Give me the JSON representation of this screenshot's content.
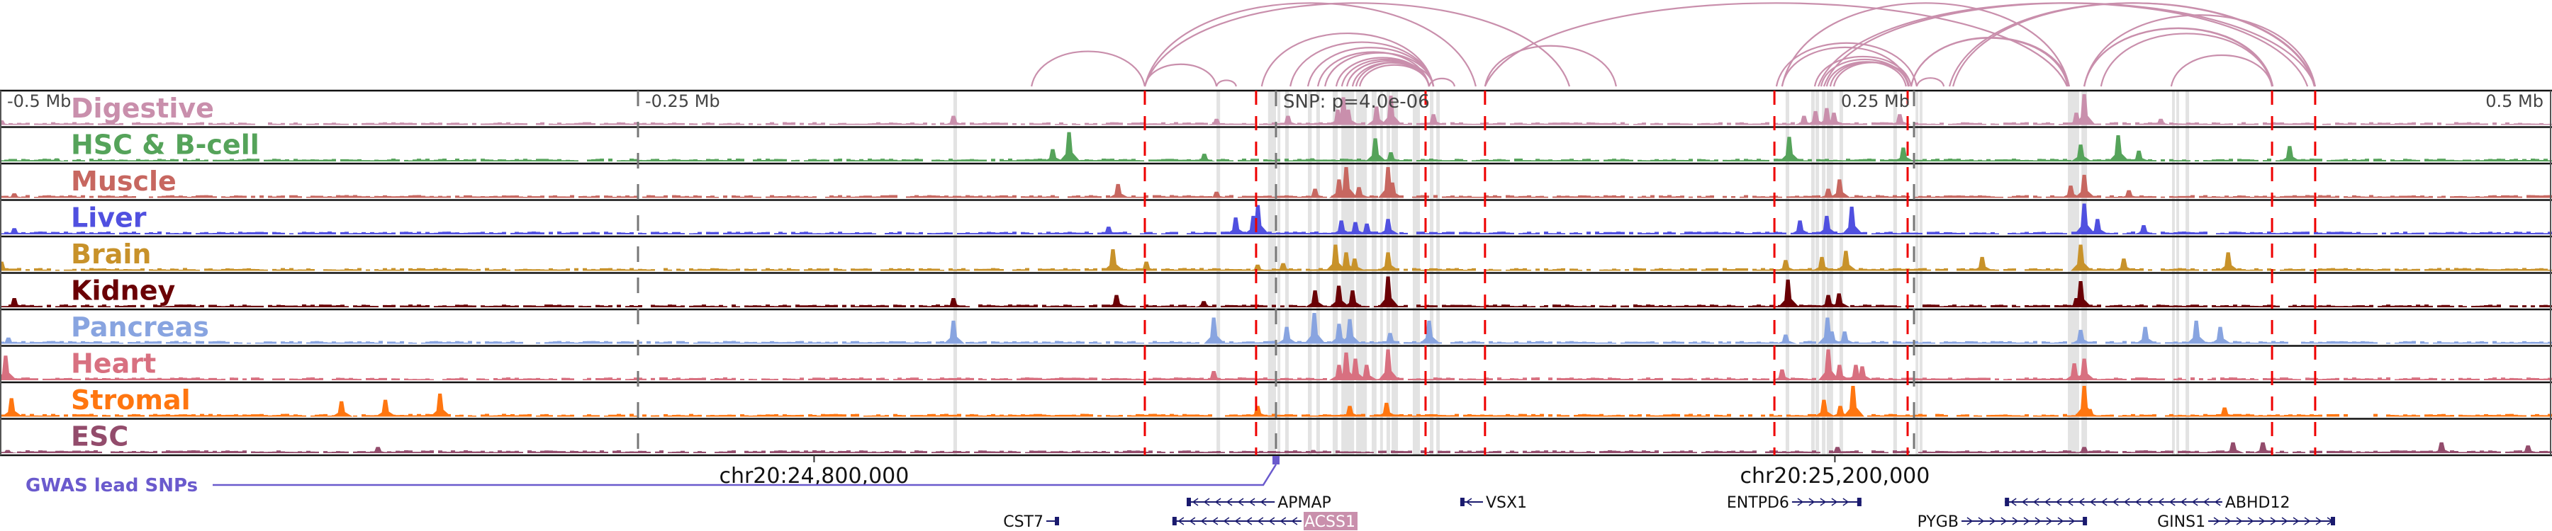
{
  "view": {
    "range_mb": [
      -0.5,
      0.5
    ],
    "axis_ticks": [
      {
        "pos_mb": -0.5,
        "label": "-0.5 Mb"
      },
      {
        "pos_mb": -0.25,
        "label": "-0.25 Mb"
      },
      {
        "pos_mb": 0.25,
        "label": "0.25 Mb"
      },
      {
        "pos_mb": 0.5,
        "label": "0.5 Mb"
      }
    ],
    "snp": {
      "pos_mb": 0.0,
      "label": "SNP: p=4.0e-06"
    }
  },
  "colors": {
    "red_line": "#ee0000",
    "highlight": "#e3e3e3",
    "arc": "#c98fac",
    "gwas": "#6a5acd",
    "gene": "#1a1a6e",
    "gene_highlight_bg": "#c98fac"
  },
  "tracks": [
    {
      "name": "Digestive",
      "color": "#c98fac"
    },
    {
      "name": "HSC & B-cell",
      "color": "#55a35a"
    },
    {
      "name": "Muscle",
      "color": "#c76760"
    },
    {
      "name": "Liver",
      "color": "#5050e0"
    },
    {
      "name": "Brain",
      "color": "#c8922a"
    },
    {
      "name": "Kidney",
      "color": "#6a0005"
    },
    {
      "name": "Pancreas",
      "color": "#88a4e0"
    },
    {
      "name": "Heart",
      "color": "#d87080"
    },
    {
      "name": "Stromal",
      "color": "#ff7610"
    },
    {
      "name": "ESC",
      "color": "#934c6c"
    }
  ],
  "red_lines_mb": [
    -0.0514,
    -0.0078,
    0.0586,
    0.0819,
    0.1953,
    0.2475,
    0.3903,
    0.4072
  ],
  "highlight_bands_mb": [
    [
      -0.1264,
      -0.125
    ],
    [
      -0.0233,
      -0.0219
    ],
    [
      -0.0031,
      0.0
    ],
    [
      0.0006,
      0.0017
    ],
    [
      0.0036,
      0.005
    ],
    [
      0.0125,
      0.014
    ],
    [
      0.0158,
      0.0172
    ],
    [
      0.0222,
      0.0242
    ],
    [
      0.0256,
      0.0306
    ],
    [
      0.0314,
      0.0356
    ],
    [
      0.0375,
      0.0394
    ],
    [
      0.0408,
      0.0419
    ],
    [
      0.0433,
      0.0447
    ],
    [
      0.0453,
      0.0478
    ],
    [
      0.0536,
      0.0564
    ],
    [
      0.0603,
      0.0617
    ],
    [
      0.0628,
      0.0642
    ],
    [
      0.1997,
      0.2011
    ],
    [
      0.2097,
      0.2111
    ],
    [
      0.2114,
      0.2128
    ],
    [
      0.2139,
      0.2153
    ],
    [
      0.2158,
      0.2183
    ],
    [
      0.2208,
      0.2222
    ],
    [
      0.2419,
      0.2433
    ],
    [
      0.2506,
      0.2517
    ],
    [
      0.2522,
      0.2533
    ],
    [
      0.3103,
      0.3147
    ],
    [
      0.3156,
      0.317
    ],
    [
      0.3164,
      0.3178
    ],
    [
      0.3511,
      0.3522
    ],
    [
      0.3528,
      0.3539
    ],
    [
      0.3564,
      0.3578
    ]
  ],
  "track_peaks": [
    [
      [
        -0.4994,
        0.15
      ],
      [
        -0.1264,
        0.3
      ],
      [
        -0.0233,
        0.2
      ],
      [
        0.0047,
        0.3
      ],
      [
        0.0242,
        0.5
      ],
      [
        0.0264,
        0.9
      ],
      [
        0.0283,
        0.5
      ],
      [
        0.0394,
        0.6
      ],
      [
        0.045,
        0.95
      ],
      [
        0.0617,
        0.35
      ],
      [
        0.2069,
        0.3
      ],
      [
        0.2114,
        0.45
      ],
      [
        0.2158,
        0.55
      ],
      [
        0.2186,
        0.4
      ],
      [
        0.2444,
        0.35
      ],
      [
        0.3136,
        0.4
      ],
      [
        0.3167,
        1.0
      ],
      [
        0.3467,
        0.2
      ]
    ],
    [
      [
        -0.4778,
        0.1
      ],
      [
        -0.0811,
        0.95
      ],
      [
        -0.0875,
        0.4
      ],
      [
        -0.0281,
        0.25
      ],
      [
        0.0389,
        0.75
      ],
      [
        0.045,
        0.3
      ],
      [
        0.0142,
        0.1
      ],
      [
        0.2458,
        0.45
      ],
      [
        0.3153,
        0.55
      ],
      [
        0.33,
        0.85
      ],
      [
        0.3381,
        0.35
      ],
      [
        0.3972,
        0.5
      ],
      [
        0.2011,
        0.8
      ]
    ],
    [
      [
        -0.4944,
        0.15
      ],
      [
        -0.0619,
        0.45
      ],
      [
        -0.0233,
        0.2
      ],
      [
        0.0153,
        0.3
      ],
      [
        0.0247,
        0.6
      ],
      [
        0.0275,
        1.0
      ],
      [
        0.0325,
        0.35
      ],
      [
        0.0439,
        1.0
      ],
      [
        0.0456,
        0.5
      ],
      [
        0.2164,
        0.3
      ],
      [
        0.2208,
        0.6
      ],
      [
        0.3114,
        0.4
      ],
      [
        0.3167,
        0.75
      ],
      [
        0.3342,
        0.25
      ]
    ],
    [
      [
        -0.4944,
        0.2
      ],
      [
        -0.0656,
        0.25
      ],
      [
        -0.0158,
        0.55
      ],
      [
        -0.0089,
        0.6
      ],
      [
        -0.0071,
        0.95
      ],
      [
        0.0256,
        0.45
      ],
      [
        0.0311,
        0.4
      ],
      [
        0.0356,
        0.35
      ],
      [
        0.0439,
        0.5
      ],
      [
        0.2053,
        0.45
      ],
      [
        0.2158,
        0.6
      ],
      [
        0.2256,
        0.9
      ],
      [
        0.3167,
        1.0
      ],
      [
        0.3219,
        0.5
      ],
      [
        0.34,
        0.3
      ]
    ],
    [
      [
        -0.4994,
        0.3
      ],
      [
        -0.0639,
        0.7
      ],
      [
        -0.0508,
        0.3
      ],
      [
        -0.0072,
        0.2
      ],
      [
        0.0028,
        0.25
      ],
      [
        0.0233,
        0.85
      ],
      [
        0.0275,
        0.6
      ],
      [
        0.0308,
        0.4
      ],
      [
        0.0439,
        0.6
      ],
      [
        0.1997,
        0.35
      ],
      [
        0.2139,
        0.45
      ],
      [
        0.2233,
        0.65
      ],
      [
        0.2767,
        0.45
      ],
      [
        0.3153,
        0.85
      ],
      [
        0.3322,
        0.4
      ],
      [
        0.3731,
        0.6
      ]
    ],
    [
      [
        -0.4944,
        0.3
      ],
      [
        -0.1264,
        0.3
      ],
      [
        -0.0625,
        0.4
      ],
      [
        -0.0283,
        0.2
      ],
      [
        0.0153,
        0.55
      ],
      [
        0.0246,
        0.7
      ],
      [
        0.03,
        0.55
      ],
      [
        0.0439,
        1.0
      ],
      [
        0.2006,
        0.9
      ],
      [
        0.2164,
        0.4
      ],
      [
        0.2206,
        0.45
      ],
      [
        0.3153,
        0.85
      ],
      [
        0.3136,
        0.3
      ]
    ],
    [
      [
        -0.4967,
        0.2
      ],
      [
        -0.1264,
        0.75
      ],
      [
        -0.0244,
        0.85
      ],
      [
        0.0042,
        0.55
      ],
      [
        0.015,
        1.0
      ],
      [
        0.0247,
        0.65
      ],
      [
        0.0289,
        0.8
      ],
      [
        0.0447,
        0.35
      ],
      [
        0.06,
        0.75
      ],
      [
        0.1997,
        0.3
      ],
      [
        0.2161,
        0.85
      ],
      [
        0.2178,
        0.4
      ],
      [
        0.2228,
        0.4
      ],
      [
        0.3153,
        0.45
      ],
      [
        0.3406,
        0.55
      ],
      [
        0.3606,
        0.75
      ],
      [
        0.37,
        0.55
      ]
    ],
    [
      [
        -0.4978,
        0.8
      ],
      [
        -0.0244,
        0.3
      ],
      [
        0.0247,
        0.5
      ],
      [
        0.0275,
        0.9
      ],
      [
        0.0311,
        0.7
      ],
      [
        0.0439,
        1.0
      ],
      [
        0.0355,
        0.5
      ],
      [
        0.1983,
        0.35
      ],
      [
        0.2164,
        1.0
      ],
      [
        0.2208,
        0.5
      ],
      [
        0.2272,
        0.5
      ],
      [
        0.2297,
        0.45
      ],
      [
        0.3128,
        0.55
      ],
      [
        0.3167,
        0.7
      ]
    ],
    [
      [
        -0.4955,
        0.6
      ],
      [
        -0.3662,
        0.5
      ],
      [
        -0.349,
        0.55
      ],
      [
        -0.3276,
        0.75
      ],
      [
        -0.0072,
        0.35
      ],
      [
        0.0289,
        0.35
      ],
      [
        0.0433,
        0.45
      ],
      [
        0.2147,
        0.55
      ],
      [
        0.2261,
        1.0
      ],
      [
        0.2211,
        0.35
      ],
      [
        0.3167,
        1.0
      ],
      [
        0.3189,
        0.25
      ],
      [
        0.3717,
        0.3
      ]
    ],
    [
      [
        -0.497,
        0.1
      ],
      [
        -0.3519,
        0.2
      ],
      [
        0.0146,
        0.1
      ],
      [
        0.22,
        0.2
      ],
      [
        0.3167,
        0.2
      ],
      [
        0.375,
        0.35
      ],
      [
        0.3867,
        0.35
      ],
      [
        0.4567,
        0.35
      ],
      [
        0.4906,
        0.25
      ]
    ]
  ],
  "arcs_mb": [
    [
      -0.0958,
      -0.0514
    ],
    [
      -0.0514,
      0.115
    ],
    [
      -0.0514,
      0.0783
    ],
    [
      -0.0514,
      -0.0233
    ],
    [
      -0.0056,
      0.0617
    ],
    [
      0.0056,
      0.0617
    ],
    [
      0.0125,
      0.0617
    ],
    [
      0.0164,
      0.06
    ],
    [
      0.0192,
      0.0617
    ],
    [
      0.0236,
      0.06
    ],
    [
      0.0258,
      0.06
    ],
    [
      0.0278,
      0.06
    ],
    [
      0.03,
      0.06
    ],
    [
      0.0314,
      0.0617
    ],
    [
      0.0328,
      0.06
    ],
    [
      0.06,
      0.07
    ],
    [
      0.0819,
      0.1333
    ],
    [
      0.0819,
      0.31
    ],
    [
      0.1961,
      0.2511
    ],
    [
      0.1983,
      0.2478
    ],
    [
      0.2111,
      0.2489
    ],
    [
      0.2136,
      0.2478
    ],
    [
      0.2158,
      0.2469
    ],
    [
      0.2172,
      0.2481
    ],
    [
      0.2186,
      0.2489
    ],
    [
      0.2125,
      0.4042
    ],
    [
      0.2147,
      0.4072
    ],
    [
      0.2489,
      0.3108
    ],
    [
      0.2489,
      0.3103
    ],
    [
      0.3167,
      0.3903
    ],
    [
      0.3167,
      0.3906
    ],
    [
      0.3167,
      0.4072
    ],
    [
      0.2653,
      0.4072
    ],
    [
      0.2639,
      0.4069
    ],
    [
      0.3233,
      0.3903
    ],
    [
      0.3508,
      0.3903
    ],
    [
      0.2511,
      0.2617
    ],
    [
      0.1983,
      0.3108
    ],
    [
      -0.0233,
      -0.0156
    ]
  ],
  "coordinates": [
    {
      "pos_mb": -0.181,
      "label": "chr20:24,800,000"
    },
    {
      "pos_mb": 0.219,
      "label": "chr20:25,200,000"
    }
  ],
  "gwas": {
    "label": "GWAS lead SNPs",
    "snp_pos_mb": 0.0
  },
  "genes": [
    {
      "name": "APMAP",
      "start_mb": -0.0005,
      "end_mb": -0.035,
      "strand": "-",
      "row": 0,
      "label_side": "right",
      "highlight": false
    },
    {
      "name": "VSX1",
      "start_mb": 0.0811,
      "end_mb": 0.0722,
      "strand": "-",
      "row": 0,
      "label_side": "right",
      "highlight": false
    },
    {
      "name": "CST7",
      "start_mb": -0.09,
      "end_mb": -0.085,
      "strand": "+",
      "row": 1,
      "label_side": "left",
      "highlight": false
    },
    {
      "name": "ACSS1",
      "start_mb": 0.01,
      "end_mb": -0.0406,
      "strand": "-",
      "row": 1,
      "label_side": "right",
      "highlight": true
    },
    {
      "name": "ENTPD6",
      "start_mb": 0.2022,
      "end_mb": 0.2294,
      "strand": "+",
      "row": 0,
      "label_side": "left",
      "highlight": false
    },
    {
      "name": "ABHD12",
      "start_mb": 0.3708,
      "end_mb": 0.2856,
      "strand": "-",
      "row": 0,
      "label_side": "right",
      "highlight": false
    },
    {
      "name": "PYGB",
      "start_mb": 0.2686,
      "end_mb": 0.3178,
      "strand": "+",
      "row": 1,
      "label_side": "left",
      "highlight": false
    },
    {
      "name": "GINS1",
      "start_mb": 0.3653,
      "end_mb": 0.415,
      "strand": "+",
      "row": 1,
      "label_side": "left",
      "highlight": false
    }
  ]
}
